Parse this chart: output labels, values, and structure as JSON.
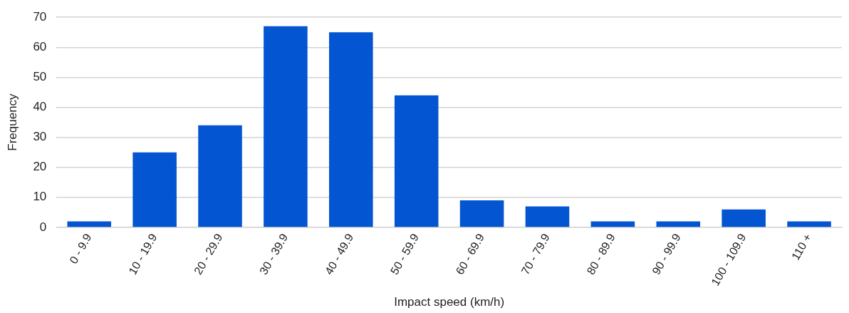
{
  "chart_data": {
    "type": "bar",
    "xlabel": "Impact speed (km/h)",
    "ylabel": "Frequency",
    "categories": [
      "0 - 9.9",
      "10 - 19.9",
      "20 - 29.9",
      "30 - 39.9",
      "40 - 49.9",
      "50 - 59.9",
      "60 - 69.9",
      "70 - 79.9",
      "80 - 89.9",
      "90 - 99.9",
      "100 - 109.9",
      "110 +"
    ],
    "values": [
      2,
      25,
      34,
      67,
      65,
      44,
      9,
      7,
      2,
      2,
      6,
      2
    ],
    "color": "#0455d1",
    "ylim": [
      0,
      70
    ],
    "yticks": [
      0,
      10,
      20,
      30,
      40,
      50,
      60,
      70
    ],
    "grid": "y",
    "legend": false
  }
}
